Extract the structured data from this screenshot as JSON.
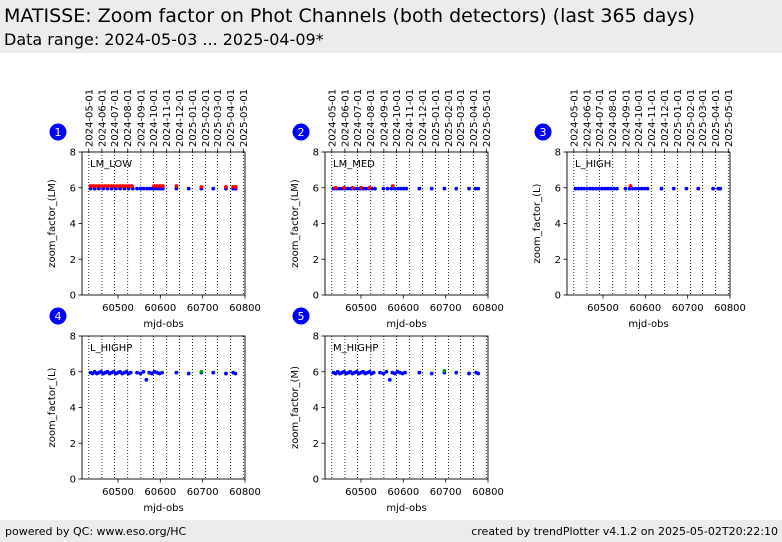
{
  "header": {
    "title": "MATISSE: Zoom factor on Phot Channels (both detectors) (last 365 days)",
    "subtitle": "Data range: 2024-05-03 ... 2025-04-09*"
  },
  "footer": {
    "left": "powered by QC: www.eso.org/HC",
    "right": "created by trendPlotter v4.1.2 on 2025-05-02T20:22:10"
  },
  "colors": {
    "primary": "#0000ff",
    "secondary": "#ff0000",
    "accent": "#009900",
    "badge": "#0000ff"
  },
  "chart_data": [
    {
      "type": "scatter",
      "index": "1",
      "label": "LM_LOW",
      "ylabel": "zoom_factor_(LM)",
      "xlabel": "mjd-obs",
      "xlim": [
        60415,
        60800
      ],
      "ylim": [
        0,
        8
      ],
      "yticks": [
        0,
        2,
        4,
        6,
        8
      ],
      "xticks": [
        60500,
        60600,
        60700,
        60800
      ],
      "date_ticks": [
        "2024-05-01",
        "2024-06-01",
        "2024-07-01",
        "2024-08-01",
        "2024-09-01",
        "2024-10-01",
        "2024-11-01",
        "2024-12-01",
        "2025-01-01",
        "2025-02-01",
        "2025-03-01",
        "2025-04-01",
        "2025-05-01"
      ],
      "series": [
        {
          "color": "primary",
          "points": [
            [
              60435,
              5.95
            ],
            [
              60445,
              5.95
            ],
            [
              60455,
              5.95
            ],
            [
              60465,
              5.95
            ],
            [
              60475,
              5.95
            ],
            [
              60485,
              5.95
            ],
            [
              60495,
              5.95
            ],
            [
              60505,
              5.95
            ],
            [
              60515,
              5.95
            ],
            [
              60525,
              5.95
            ],
            [
              60535,
              5.95
            ],
            [
              60545,
              5.95
            ],
            [
              60553,
              5.95
            ],
            [
              60560,
              5.95
            ],
            [
              60568,
              5.95
            ],
            [
              60575,
              5.95
            ],
            [
              60582,
              5.95
            ],
            [
              60588,
              5.95
            ],
            [
              60594,
              5.95
            ],
            [
              60600,
              5.95
            ],
            [
              60606,
              5.95
            ],
            [
              60638,
              5.95
            ],
            [
              60667,
              5.95
            ],
            [
              60697,
              5.95
            ],
            [
              60725,
              5.95
            ],
            [
              60755,
              5.95
            ],
            [
              60772,
              5.95
            ],
            [
              60778,
              5.95
            ]
          ]
        },
        {
          "color": "secondary",
          "points": [
            [
              60435,
              6.1
            ],
            [
              60442,
              6.1
            ],
            [
              60449,
              6.1
            ],
            [
              60456,
              6.1
            ],
            [
              60463,
              6.1
            ],
            [
              60470,
              6.1
            ],
            [
              60477,
              6.1
            ],
            [
              60484,
              6.1
            ],
            [
              60491,
              6.1
            ],
            [
              60498,
              6.1
            ],
            [
              60505,
              6.1
            ],
            [
              60512,
              6.1
            ],
            [
              60519,
              6.1
            ],
            [
              60526,
              6.1
            ],
            [
              60533,
              6.1
            ],
            [
              60585,
              6.1
            ],
            [
              60592,
              6.1
            ],
            [
              60599,
              6.1
            ],
            [
              60606,
              6.1
            ],
            [
              60638,
              6.1
            ],
            [
              60697,
              6.05
            ],
            [
              60755,
              6.05
            ],
            [
              60772,
              6.05
            ],
            [
              60778,
              6.05
            ]
          ]
        }
      ]
    },
    {
      "type": "scatter",
      "index": "2",
      "label": "LM_MED",
      "ylabel": "zoom_factor_(LM)",
      "xlabel": "mjd-obs",
      "xlim": [
        60415,
        60800
      ],
      "ylim": [
        0,
        8
      ],
      "yticks": [
        0,
        2,
        4,
        6,
        8
      ],
      "xticks": [
        60500,
        60600,
        60700,
        60800
      ],
      "date_ticks": [
        "2024-05-01",
        "2024-06-01",
        "2024-07-01",
        "2024-08-01",
        "2024-09-01",
        "2024-10-01",
        "2024-11-01",
        "2024-12-01",
        "2025-01-01",
        "2025-02-01",
        "2025-03-01",
        "2025-04-01",
        "2025-05-01"
      ],
      "series": [
        {
          "color": "primary",
          "points": [
            [
              60435,
              5.95
            ],
            [
              60442,
              5.95
            ],
            [
              60449,
              5.95
            ],
            [
              60456,
              5.95
            ],
            [
              60463,
              5.95
            ],
            [
              60470,
              5.95
            ],
            [
              60477,
              5.95
            ],
            [
              60484,
              5.95
            ],
            [
              60491,
              5.95
            ],
            [
              60498,
              5.95
            ],
            [
              60505,
              5.95
            ],
            [
              60512,
              5.95
            ],
            [
              60519,
              5.95
            ],
            [
              60526,
              5.95
            ],
            [
              60533,
              5.95
            ],
            [
              60553,
              5.95
            ],
            [
              60563,
              5.95
            ],
            [
              60572,
              5.95
            ],
            [
              60580,
              5.95
            ],
            [
              60587,
              5.95
            ],
            [
              60594,
              5.95
            ],
            [
              60601,
              5.95
            ],
            [
              60607,
              5.95
            ],
            [
              60638,
              5.95
            ],
            [
              60667,
              5.95
            ],
            [
              60697,
              5.95
            ],
            [
              60725,
              5.95
            ],
            [
              60755,
              5.95
            ],
            [
              60770,
              5.95
            ],
            [
              60777,
              5.95
            ]
          ]
        },
        {
          "color": "secondary",
          "points": [
            [
              60440,
              6.0
            ],
            [
              60460,
              6.0
            ],
            [
              60480,
              6.0
            ],
            [
              60500,
              6.0
            ],
            [
              60520,
              6.0
            ],
            [
              60575,
              6.1
            ]
          ]
        }
      ]
    },
    {
      "type": "scatter",
      "index": "3",
      "label": "L_HIGH",
      "ylabel": "zoom_factor_(L)",
      "xlabel": "mjd-obs",
      "xlim": [
        60415,
        60800
      ],
      "ylim": [
        0,
        8
      ],
      "yticks": [
        0,
        2,
        4,
        6,
        8
      ],
      "xticks": [
        60500,
        60600,
        60700,
        60800
      ],
      "date_ticks": [
        "2024-05-01",
        "2024-06-01",
        "2024-07-01",
        "2024-08-01",
        "2024-09-01",
        "2024-10-01",
        "2024-11-01",
        "2024-12-01",
        "2025-01-01",
        "2025-02-01",
        "2025-03-01",
        "2025-04-01",
        "2025-05-01"
      ],
      "series": [
        {
          "color": "primary",
          "points": [
            [
              60435,
              5.95
            ],
            [
              60442,
              5.95
            ],
            [
              60449,
              5.95
            ],
            [
              60456,
              5.95
            ],
            [
              60463,
              5.95
            ],
            [
              60470,
              5.95
            ],
            [
              60477,
              5.95
            ],
            [
              60484,
              5.95
            ],
            [
              60491,
              5.95
            ],
            [
              60498,
              5.95
            ],
            [
              60505,
              5.95
            ],
            [
              60512,
              5.95
            ],
            [
              60519,
              5.95
            ],
            [
              60526,
              5.95
            ],
            [
              60533,
              5.95
            ],
            [
              60553,
              5.95
            ],
            [
              60563,
              5.95
            ],
            [
              60570,
              5.95
            ],
            [
              60577,
              5.95
            ],
            [
              60584,
              5.95
            ],
            [
              60591,
              5.95
            ],
            [
              60598,
              5.95
            ],
            [
              60605,
              5.95
            ],
            [
              60638,
              5.95
            ],
            [
              60667,
              5.95
            ],
            [
              60697,
              5.95
            ],
            [
              60725,
              5.95
            ],
            [
              60760,
              5.95
            ],
            [
              60772,
              5.95
            ],
            [
              60777,
              5.95
            ]
          ]
        },
        {
          "color": "secondary",
          "points": [
            [
              60565,
              6.1
            ]
          ]
        }
      ]
    },
    {
      "type": "scatter",
      "index": "4",
      "label": "L_HIGHP",
      "ylabel": "zoom_factor_(L)",
      "xlabel": "mjd-obs",
      "xlim": [
        60415,
        60800
      ],
      "ylim": [
        0,
        8
      ],
      "yticks": [
        0,
        2,
        4,
        6,
        8
      ],
      "xticks": [
        60500,
        60600,
        60700,
        60800
      ],
      "date_ticks": [],
      "series": [
        {
          "color": "primary",
          "points": [
            [
              60435,
              5.95
            ],
            [
              60440,
              5.9
            ],
            [
              60445,
              6.0
            ],
            [
              60450,
              5.9
            ],
            [
              60455,
              5.95
            ],
            [
              60460,
              6.0
            ],
            [
              60465,
              5.9
            ],
            [
              60470,
              5.95
            ],
            [
              60475,
              6.0
            ],
            [
              60480,
              5.9
            ],
            [
              60485,
              5.95
            ],
            [
              60490,
              6.0
            ],
            [
              60495,
              5.9
            ],
            [
              60500,
              5.95
            ],
            [
              60505,
              6.0
            ],
            [
              60510,
              5.9
            ],
            [
              60515,
              5.95
            ],
            [
              60520,
              6.0
            ],
            [
              60525,
              5.9
            ],
            [
              60530,
              5.95
            ],
            [
              60545,
              5.95
            ],
            [
              60553,
              5.9
            ],
            [
              60560,
              6.0
            ],
            [
              60567,
              5.55
            ],
            [
              60574,
              5.95
            ],
            [
              60580,
              5.9
            ],
            [
              60586,
              6.0
            ],
            [
              60592,
              5.95
            ],
            [
              60598,
              5.9
            ],
            [
              60604,
              5.95
            ],
            [
              60638,
              5.95
            ],
            [
              60667,
              5.9
            ],
            [
              60697,
              5.95
            ],
            [
              60725,
              5.95
            ],
            [
              60755,
              5.9
            ],
            [
              60772,
              5.95
            ],
            [
              60777,
              5.9
            ]
          ]
        },
        {
          "color": "accent",
          "points": [
            [
              60697,
              6.0
            ]
          ]
        }
      ]
    },
    {
      "type": "scatter",
      "index": "5",
      "label": "M_HIGHP",
      "ylabel": "zoom_factor_(M)",
      "xlabel": "mjd-obs",
      "xlim": [
        60415,
        60800
      ],
      "ylim": [
        0,
        8
      ],
      "yticks": [
        0,
        2,
        4,
        6,
        8
      ],
      "xticks": [
        60500,
        60600,
        60700,
        60800
      ],
      "date_ticks": [],
      "series": [
        {
          "color": "primary",
          "points": [
            [
              60435,
              5.95
            ],
            [
              60440,
              5.9
            ],
            [
              60445,
              6.0
            ],
            [
              60450,
              5.9
            ],
            [
              60455,
              5.95
            ],
            [
              60460,
              6.0
            ],
            [
              60465,
              5.9
            ],
            [
              60470,
              5.95
            ],
            [
              60475,
              6.0
            ],
            [
              60480,
              5.9
            ],
            [
              60485,
              5.95
            ],
            [
              60490,
              6.0
            ],
            [
              60495,
              5.9
            ],
            [
              60500,
              5.95
            ],
            [
              60505,
              6.0
            ],
            [
              60510,
              5.9
            ],
            [
              60515,
              5.95
            ],
            [
              60520,
              6.0
            ],
            [
              60525,
              5.9
            ],
            [
              60530,
              5.95
            ],
            [
              60545,
              5.95
            ],
            [
              60553,
              5.9
            ],
            [
              60560,
              6.0
            ],
            [
              60568,
              5.55
            ],
            [
              60574,
              5.95
            ],
            [
              60580,
              5.9
            ],
            [
              60586,
              6.0
            ],
            [
              60592,
              5.95
            ],
            [
              60598,
              5.9
            ],
            [
              60604,
              5.95
            ],
            [
              60638,
              5.95
            ],
            [
              60667,
              5.9
            ],
            [
              60697,
              5.95
            ],
            [
              60725,
              5.95
            ],
            [
              60755,
              5.9
            ],
            [
              60772,
              5.95
            ],
            [
              60777,
              5.9
            ]
          ]
        },
        {
          "color": "accent",
          "points": [
            [
              60697,
              6.05
            ]
          ]
        }
      ]
    }
  ]
}
